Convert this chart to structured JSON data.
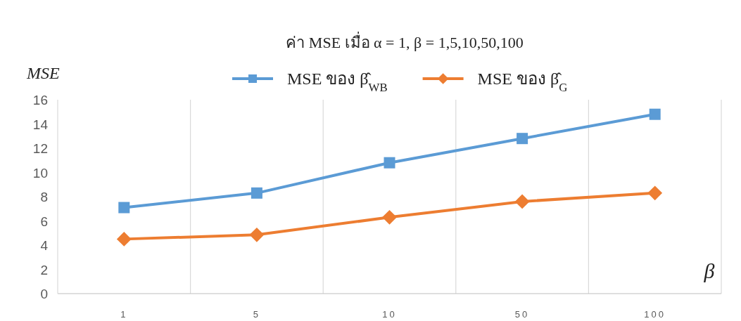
{
  "chart_data": {
    "type": "line",
    "title": "ค่า MSE เมื่อ α = 1, β = 1,5,10,50,100",
    "xlabel": "β",
    "ylabel": "MSE",
    "categories": [
      "1",
      "5",
      "10",
      "50",
      "100"
    ],
    "series": [
      {
        "name": "MSE ของ β̂$_{WB}$",
        "color": "#5b9bd5",
        "marker": "square",
        "values": [
          7.1,
          8.3,
          10.8,
          12.8,
          14.8
        ]
      },
      {
        "name": "MSE ของ β̂$_{G}$",
        "color": "#ed7d31",
        "marker": "diamond",
        "values": [
          4.5,
          4.85,
          6.3,
          7.6,
          8.3
        ]
      }
    ],
    "ylim": [
      0,
      16
    ],
    "yticks": [
      0,
      2,
      4,
      6,
      8,
      10,
      12,
      14,
      16
    ],
    "grid": "x",
    "legend": "top",
    "line_style": "solid"
  }
}
